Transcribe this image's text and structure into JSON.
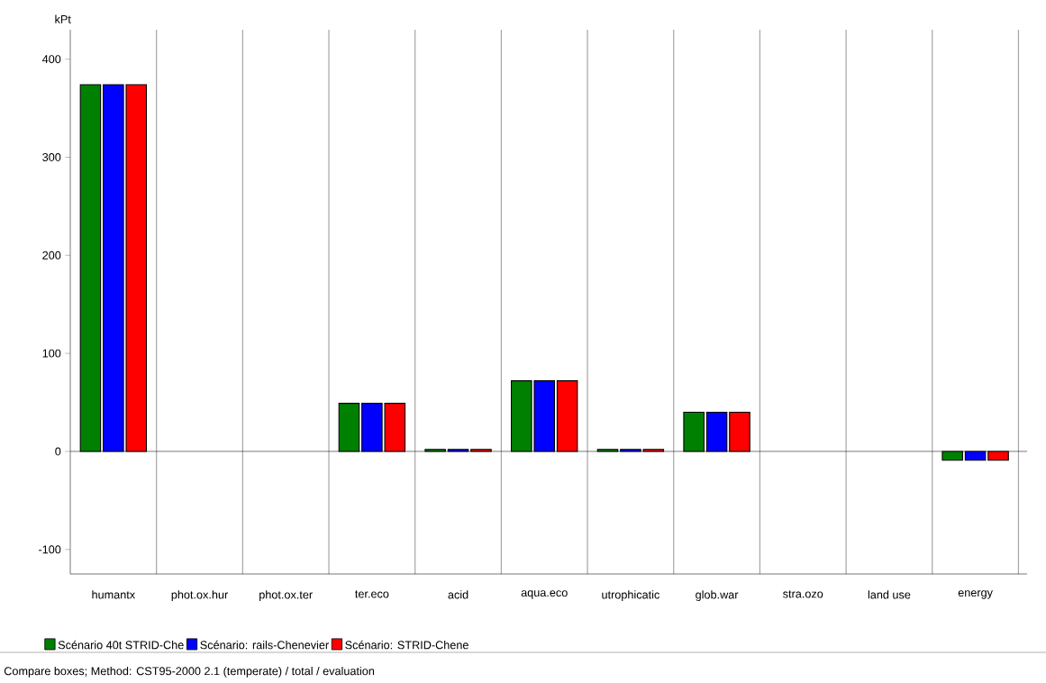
{
  "chart_data": {
    "type": "bar",
    "ylabel": "kPt",
    "categories": [
      "humantx",
      "phot.ox.hur",
      "phot.ox.ter",
      "ter.eco",
      "acid",
      "aqua.eco",
      "utrophicatic",
      "glob.war",
      "stra.ozo",
      "land use",
      "energy"
    ],
    "series": [
      {
        "name": "Scénario 40t STRID-Che",
        "color": "#008000",
        "values": [
          374,
          null,
          null,
          49,
          2,
          72,
          2,
          40,
          null,
          null,
          -9
        ]
      },
      {
        "name": "Scénario: rails-Chenevier",
        "color": "#0000ff",
        "values": [
          374,
          null,
          null,
          49,
          2,
          72,
          2,
          40,
          null,
          null,
          -9
        ]
      },
      {
        "name": "Scénario: STRID-Chene",
        "color": "#ff0000",
        "values": [
          374,
          null,
          null,
          49,
          2,
          72,
          2,
          40,
          null,
          null,
          -9
        ]
      }
    ],
    "ylim": [
      -125,
      430
    ],
    "yticks": [
      -100,
      0,
      100,
      200,
      300,
      400
    ],
    "grid": "x",
    "legend": "bottom",
    "annotations": [
      "Compare boxes;  Method: CST95-2000 2.1 (temperate) /  total / evaluation"
    ]
  }
}
